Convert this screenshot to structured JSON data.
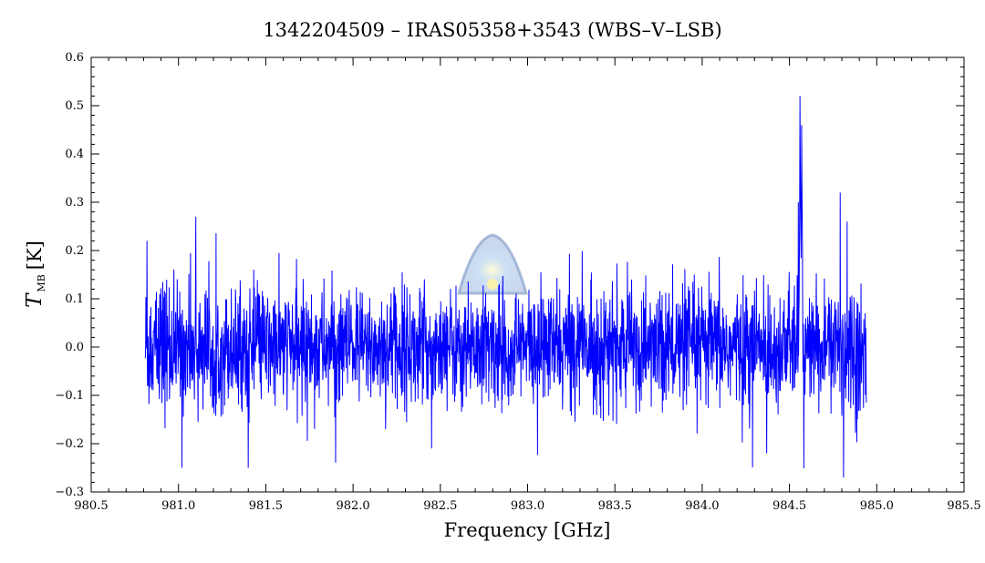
{
  "chart_data": {
    "type": "line",
    "title": "1342204509 – IRAS05358+3543 (WBS–V–LSB)",
    "xlabel": "Frequency [GHz]",
    "ylabel": {
      "symbol": "T",
      "subscript": "MB",
      "unit": "[K]"
    },
    "xlim": [
      980.5,
      985.5
    ],
    "ylim": [
      -0.3,
      0.6
    ],
    "x_ticks": [
      980.5,
      981.0,
      981.5,
      982.0,
      982.5,
      983.0,
      983.5,
      984.0,
      984.5,
      985.0,
      985.5
    ],
    "x_tick_labels": [
      "980.5",
      "981.0",
      "981.5",
      "982.0",
      "982.5",
      "983.0",
      "983.5",
      "984.0",
      "984.5",
      "985.0",
      "985.5"
    ],
    "y_ticks": [
      -0.3,
      -0.2,
      -0.1,
      0.0,
      0.1,
      0.2,
      0.3,
      0.4,
      0.5,
      0.6
    ],
    "y_tick_labels": [
      "−0.3",
      "−0.2",
      "−0.1",
      "0.0",
      "0.1",
      "0.2",
      "0.3",
      "0.4",
      "0.5",
      "0.6"
    ],
    "series": [
      {
        "color": "#0000ff",
        "x_range": [
          980.81,
          984.94
        ],
        "noise_rms": 0.07,
        "features": [
          {
            "x": 984.56,
            "y": 0.52
          },
          {
            "x": 984.57,
            "y": 0.46
          },
          {
            "x": 984.55,
            "y": 0.3
          },
          {
            "x": 984.79,
            "y": 0.32
          },
          {
            "x": 984.83,
            "y": 0.26
          },
          {
            "x": 984.81,
            "y": -0.27
          },
          {
            "x": 981.1,
            "y": 0.27
          },
          {
            "x": 981.02,
            "y": -0.25
          },
          {
            "x": 981.4,
            "y": -0.25
          },
          {
            "x": 984.37,
            "y": -0.22
          },
          {
            "x": 982.45,
            "y": -0.21
          },
          {
            "x": 980.82,
            "y": 0.22
          }
        ]
      }
    ],
    "grid": false,
    "legend": "none"
  },
  "watermark": {
    "name": "herschel-logo-watermark"
  }
}
